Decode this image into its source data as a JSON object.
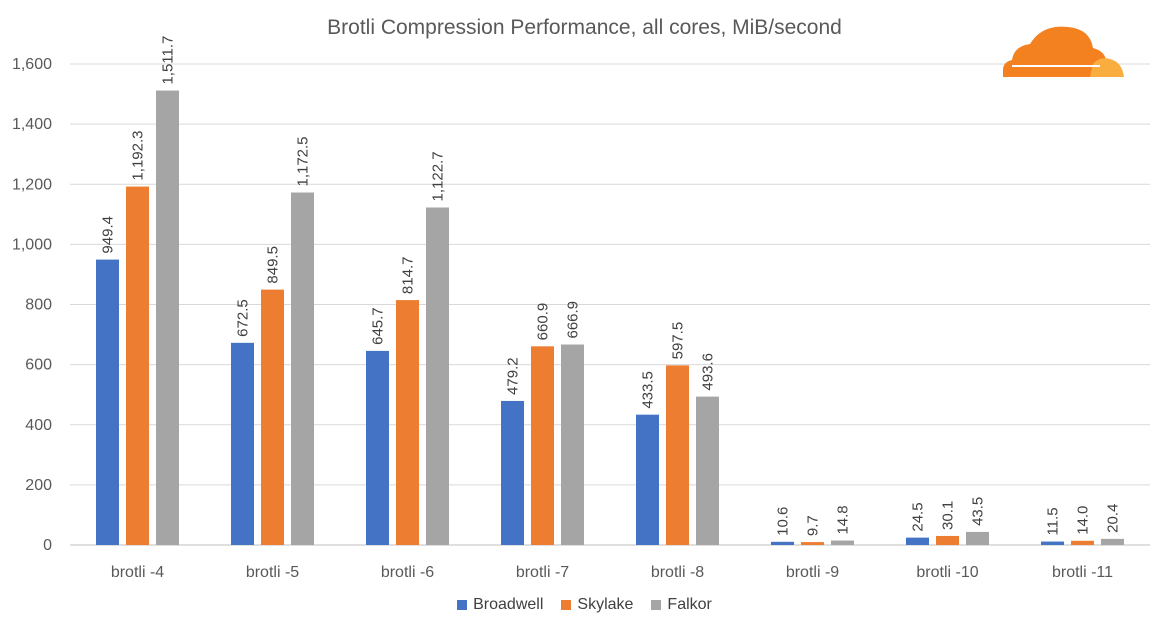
{
  "colors": {
    "Broadwell": "#4472c4",
    "Skylake": "#ed7d31",
    "Falkor": "#a5a5a5",
    "logo_main": "#f48120",
    "logo_light": "#faad3f",
    "grid": "#d9d9d9",
    "text": "#595959"
  },
  "logo": {
    "name": "cloudflare-logo-icon"
  },
  "chart_data": {
    "type": "bar",
    "title": "Brotli Compression Performance, all cores, MiB/second",
    "xlabel": "",
    "ylabel": "",
    "ylim": [
      0,
      1600
    ],
    "yticks": [
      0,
      200,
      400,
      600,
      800,
      1000,
      1200,
      1400,
      1600
    ],
    "ytick_labels": [
      "0",
      "200",
      "400",
      "600",
      "800",
      "1,000",
      "1,200",
      "1,400",
      "1,600"
    ],
    "grid": true,
    "legend_position": "bottom",
    "categories": [
      "brotli -4",
      "brotli -5",
      "brotli -6",
      "brotli -7",
      "brotli -8",
      "brotli -9",
      "brotli -10",
      "brotli -11"
    ],
    "series": [
      {
        "name": "Broadwell",
        "values": [
          949.4,
          672.5,
          645.7,
          479.2,
          433.5,
          10.6,
          24.5,
          11.5
        ],
        "labels": [
          "949.4",
          "672.5",
          "645.7",
          "479.2",
          "433.5",
          "10.6",
          "24.5",
          "11.5"
        ]
      },
      {
        "name": "Skylake",
        "values": [
          1192.3,
          849.5,
          814.7,
          660.9,
          597.5,
          9.7,
          30.1,
          14.0
        ],
        "labels": [
          "1,192.3",
          "849.5",
          "814.7",
          "660.9",
          "597.5",
          "9.7",
          "30.1",
          "14.0"
        ]
      },
      {
        "name": "Falkor",
        "values": [
          1511.7,
          1172.5,
          1122.7,
          666.9,
          493.6,
          14.8,
          43.5,
          20.4
        ],
        "labels": [
          "1,511.7",
          "1,172.5",
          "1,122.7",
          "666.9",
          "493.6",
          "14.8",
          "43.5",
          "20.4"
        ]
      }
    ]
  }
}
